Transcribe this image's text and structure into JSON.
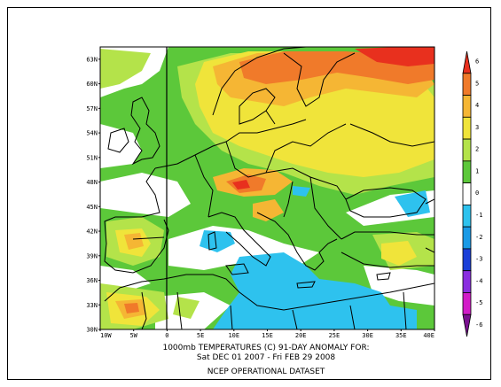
{
  "map": {
    "lat_labels": [
      "63N",
      "60N",
      "57N",
      "54N",
      "51N",
      "48N",
      "45N",
      "42N",
      "39N",
      "36N",
      "33N",
      "30N"
    ],
    "lon_labels": [
      "10W",
      "5W",
      "0",
      "5E",
      "10E",
      "15E",
      "20E",
      "25E",
      "30E",
      "35E",
      "40E"
    ],
    "lat_range": [
      30,
      64.5
    ],
    "lon_range": [
      -10,
      40
    ]
  },
  "caption": {
    "line1": "1000mb TEMPERATURES (C)   91-DAY ANOMALY FOR:",
    "line2": "Sat DEC 01 2007 - Fri FEB 29 2008",
    "line3": "NCEP OPERATIONAL DATASET"
  },
  "colorbar": {
    "labels": [
      "6",
      "5",
      "4",
      "3",
      "2",
      "1",
      "0",
      "-1",
      "-2",
      "-3",
      "-4",
      "-5",
      "-6"
    ],
    "colors": [
      "#e8301e",
      "#f07a2a",
      "#f5b634",
      "#f0e43a",
      "#b4e34a",
      "#5cc83a",
      "#ffffff",
      "#2ec2ee",
      "#1a9ae6",
      "#1b3fd8",
      "#8a2ee0",
      "#d21cc8",
      "#7a1090"
    ]
  },
  "palette": {
    "white": "#ffffff",
    "green": "#5cc83a",
    "yellowgreen": "#b4e34a",
    "yellow": "#f0e43a",
    "orange": "#f5b634",
    "darkorange": "#f07a2a",
    "red": "#e8301e",
    "cyan": "#2ec2ee"
  }
}
